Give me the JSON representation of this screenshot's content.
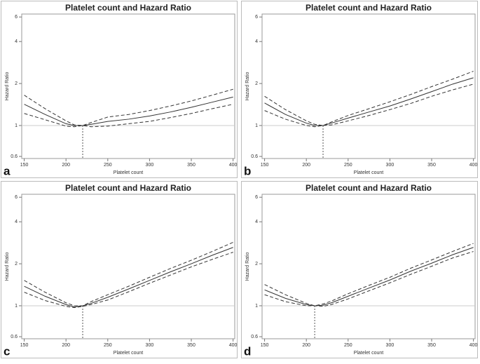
{
  "chart_data": [
    {
      "type": "line",
      "panel_label": "a",
      "title": "Platelet count and Hazard Ratio",
      "x_label": "Platelet count",
      "y_label": "Hazard Ratio",
      "log_y": true,
      "x": [
        150,
        175,
        200,
        210,
        220,
        230,
        250,
        275,
        300,
        325,
        350,
        375,
        400
      ],
      "series": [
        {
          "color": "#333333",
          "dashed": false,
          "values": [
            1.42,
            1.2,
            1.03,
            1.0,
            1.0,
            1.02,
            1.07,
            1.11,
            1.17,
            1.25,
            1.35,
            1.47,
            1.6
          ]
        },
        {
          "color": "#333333",
          "dashed": true,
          "values": [
            1.65,
            1.32,
            1.08,
            1.01,
            1.0,
            1.05,
            1.15,
            1.2,
            1.28,
            1.38,
            1.5,
            1.65,
            1.82
          ]
        },
        {
          "color": "#333333",
          "dashed": true,
          "values": [
            1.22,
            1.1,
            0.99,
            0.98,
            1.0,
            0.98,
            0.99,
            1.03,
            1.07,
            1.14,
            1.22,
            1.32,
            1.42
          ]
        }
      ],
      "ref_y": 1,
      "ref_x": 220,
      "xlim": [
        147,
        402
      ],
      "ylim": [
        0.58,
        6.3
      ],
      "xticks": [
        150,
        200,
        250,
        300,
        350,
        400
      ],
      "yticks": [
        0.6,
        1,
        2,
        4,
        6
      ]
    },
    {
      "type": "line",
      "panel_label": "b",
      "title": "Platelet count and Hazard Ratio",
      "x_label": "Platelet count",
      "y_label": "Hazard Ratio",
      "log_y": true,
      "x": [
        150,
        175,
        200,
        210,
        220,
        230,
        250,
        275,
        300,
        325,
        350,
        375,
        400
      ],
      "series": [
        {
          "color": "#333333",
          "dashed": false,
          "values": [
            1.45,
            1.2,
            1.04,
            1.0,
            1.0,
            1.04,
            1.13,
            1.25,
            1.38,
            1.55,
            1.75,
            1.98,
            2.2
          ]
        },
        {
          "color": "#333333",
          "dashed": true,
          "values": [
            1.62,
            1.3,
            1.08,
            1.02,
            1.0,
            1.06,
            1.18,
            1.32,
            1.48,
            1.67,
            1.9,
            2.15,
            2.45
          ]
        },
        {
          "color": "#333333",
          "dashed": true,
          "values": [
            1.28,
            1.11,
            1.0,
            0.98,
            1.0,
            1.01,
            1.08,
            1.18,
            1.3,
            1.44,
            1.62,
            1.8,
            1.98
          ]
        }
      ],
      "ref_y": 1,
      "ref_x": 220,
      "xlim": [
        147,
        402
      ],
      "ylim": [
        0.58,
        6.3
      ],
      "xticks": [
        150,
        200,
        250,
        300,
        350,
        400
      ],
      "yticks": [
        0.6,
        1,
        2,
        4,
        6
      ]
    },
    {
      "type": "line",
      "panel_label": "c",
      "title": "Platelet count and Hazard Ratio",
      "x_label": "Platelet count",
      "y_label": "Hazard Ratio",
      "log_y": true,
      "x": [
        150,
        175,
        200,
        210,
        220,
        230,
        250,
        275,
        300,
        325,
        350,
        375,
        400
      ],
      "series": [
        {
          "color": "#333333",
          "dashed": false,
          "values": [
            1.38,
            1.17,
            1.02,
            0.98,
            1.0,
            1.04,
            1.15,
            1.32,
            1.52,
            1.75,
            2.0,
            2.3,
            2.62
          ]
        },
        {
          "color": "#333333",
          "dashed": true,
          "values": [
            1.52,
            1.25,
            1.05,
            1.0,
            1.0,
            1.07,
            1.2,
            1.38,
            1.6,
            1.85,
            2.12,
            2.45,
            2.85
          ]
        },
        {
          "color": "#333333",
          "dashed": true,
          "values": [
            1.25,
            1.09,
            0.99,
            0.97,
            0.99,
            1.02,
            1.1,
            1.26,
            1.45,
            1.66,
            1.9,
            2.15,
            2.42
          ]
        }
      ],
      "ref_y": 1,
      "ref_x": 220,
      "xlim": [
        147,
        402
      ],
      "ylim": [
        0.58,
        6.3
      ],
      "xticks": [
        150,
        200,
        250,
        300,
        350,
        400
      ],
      "yticks": [
        0.6,
        1,
        2,
        4,
        6
      ]
    },
    {
      "type": "line",
      "panel_label": "d",
      "title": "Platelet count and Hazard Ratio",
      "x_label": "Platelet count",
      "y_label": "Hazard Ratio",
      "log_y": true,
      "x": [
        150,
        175,
        200,
        210,
        220,
        230,
        250,
        275,
        300,
        325,
        350,
        375,
        400
      ],
      "series": [
        {
          "color": "#333333",
          "dashed": false,
          "values": [
            1.3,
            1.13,
            1.02,
            1.0,
            1.01,
            1.05,
            1.17,
            1.34,
            1.53,
            1.77,
            2.02,
            2.32,
            2.62
          ]
        },
        {
          "color": "#333333",
          "dashed": true,
          "values": [
            1.42,
            1.2,
            1.04,
            1.0,
            1.03,
            1.08,
            1.22,
            1.4,
            1.6,
            1.86,
            2.13,
            2.45,
            2.8
          ]
        },
        {
          "color": "#333333",
          "dashed": true,
          "values": [
            1.2,
            1.07,
            1.0,
            1.0,
            0.99,
            1.02,
            1.12,
            1.28,
            1.46,
            1.68,
            1.92,
            2.2,
            2.45
          ]
        }
      ],
      "ref_y": 1,
      "ref_x": 210,
      "xlim": [
        147,
        402
      ],
      "ylim": [
        0.58,
        6.3
      ],
      "xticks": [
        150,
        200,
        250,
        300,
        350,
        400
      ],
      "yticks": [
        0.6,
        1,
        2,
        4,
        6
      ]
    }
  ]
}
